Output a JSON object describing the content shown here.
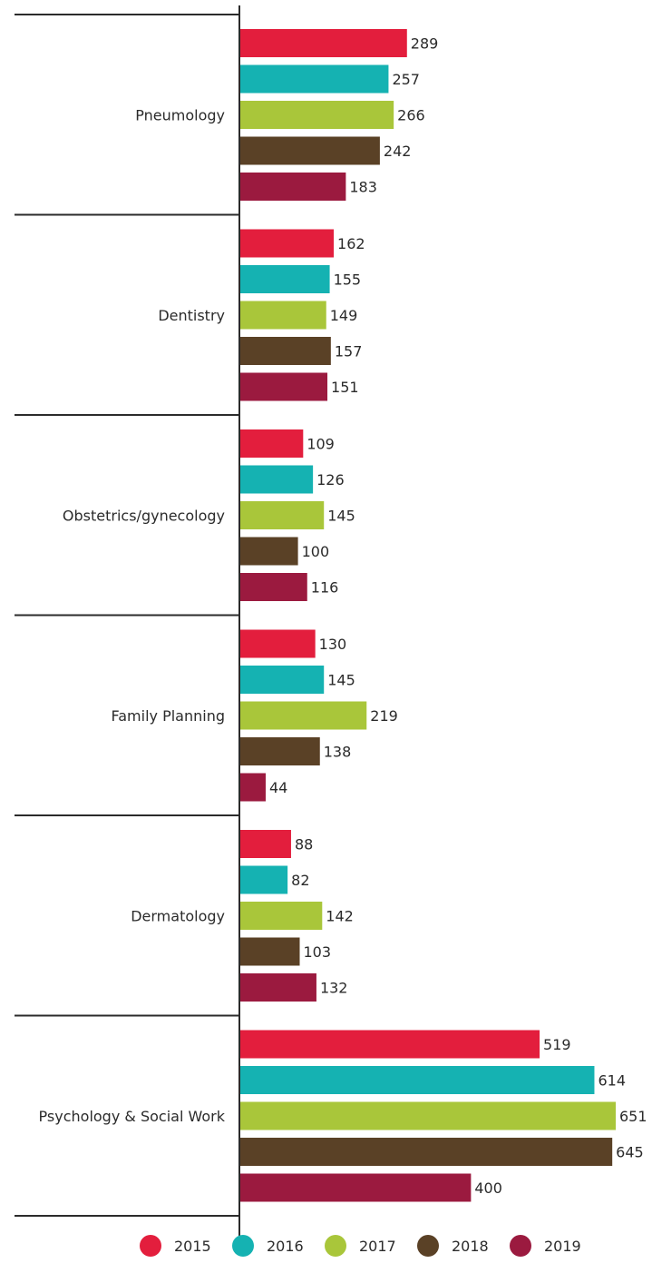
{
  "chart_data": {
    "type": "bar",
    "orientation": "horizontal",
    "categories": [
      "Pneumology",
      "Dentistry",
      "Obstetrics/gynecology",
      "Family Planning",
      "Dermatology",
      "Psychology & Social Work"
    ],
    "series": [
      {
        "name": "2015",
        "color": "#e31e3d",
        "values": [
          289,
          162,
          109,
          130,
          88,
          519
        ]
      },
      {
        "name": "2016",
        "color": "#15b2b2",
        "values": [
          257,
          155,
          126,
          145,
          82,
          614
        ]
      },
      {
        "name": "2017",
        "color": "#a9c63a",
        "values": [
          266,
          149,
          145,
          219,
          142,
          651
        ]
      },
      {
        "name": "2018",
        "color": "#5a4126",
        "values": [
          242,
          157,
          100,
          138,
          103,
          645
        ]
      },
      {
        "name": "2019",
        "color": "#9b1a3f",
        "values": [
          183,
          151,
          116,
          44,
          132,
          400
        ]
      }
    ],
    "xlim": [
      0,
      651
    ],
    "grid": false,
    "legend_position": "bottom"
  }
}
